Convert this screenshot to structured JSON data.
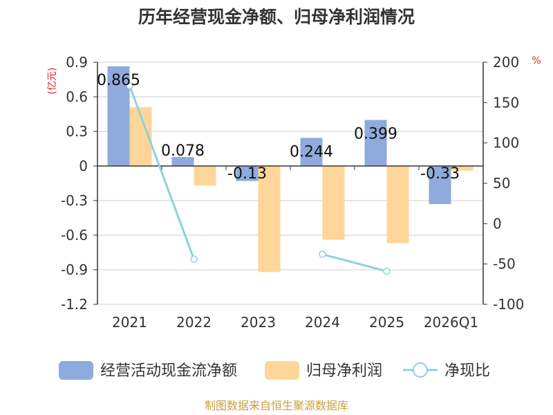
{
  "chart_data": {
    "type": "bar",
    "title": "历年经营现金净额、归母净利润情况",
    "categories": [
      "2021",
      "2022",
      "2023",
      "2024",
      "2025",
      "2026Q1"
    ],
    "left_axis": {
      "unit": "(亿元)",
      "ylim": [
        -1.2,
        0.9
      ],
      "ticks": [
        0.9,
        0.6,
        0.3,
        0,
        -0.3,
        -0.6,
        -0.9,
        -1.2
      ],
      "tick_labels": [
        "0.9",
        "0.6",
        "0.3",
        "0",
        "-0.3",
        "-0.6",
        "-0.9",
        "-1.2"
      ]
    },
    "right_axis": {
      "unit": "%",
      "ylim": [
        -100,
        200
      ],
      "ticks": [
        200,
        150,
        100,
        50,
        0,
        -50,
        -100
      ],
      "tick_labels": [
        "200",
        "150",
        "100",
        "50",
        "0",
        "-50",
        "-100"
      ]
    },
    "series": [
      {
        "name": "经营活动现金流净额",
        "kind": "bar",
        "axis": "left",
        "color": "#8faadc",
        "values": [
          0.865,
          0.078,
          -0.13,
          0.244,
          0.399,
          -0.33
        ],
        "labels": [
          "0.865",
          "0.078",
          "-0.13",
          "0.244",
          "0.399",
          "-0.33"
        ]
      },
      {
        "name": "归母净利润",
        "kind": "bar",
        "axis": "left",
        "color": "#ffd699",
        "values": [
          0.51,
          -0.17,
          -0.92,
          -0.64,
          -0.67,
          -0.04
        ]
      },
      {
        "name": "净现比",
        "kind": "line",
        "axis": "right",
        "color": "#8ad4d8",
        "values": [
          171,
          -44,
          null,
          -38,
          -59,
          null
        ]
      }
    ],
    "legend_position": "bottom",
    "source": "制图数据来自恒生聚源数据库"
  }
}
